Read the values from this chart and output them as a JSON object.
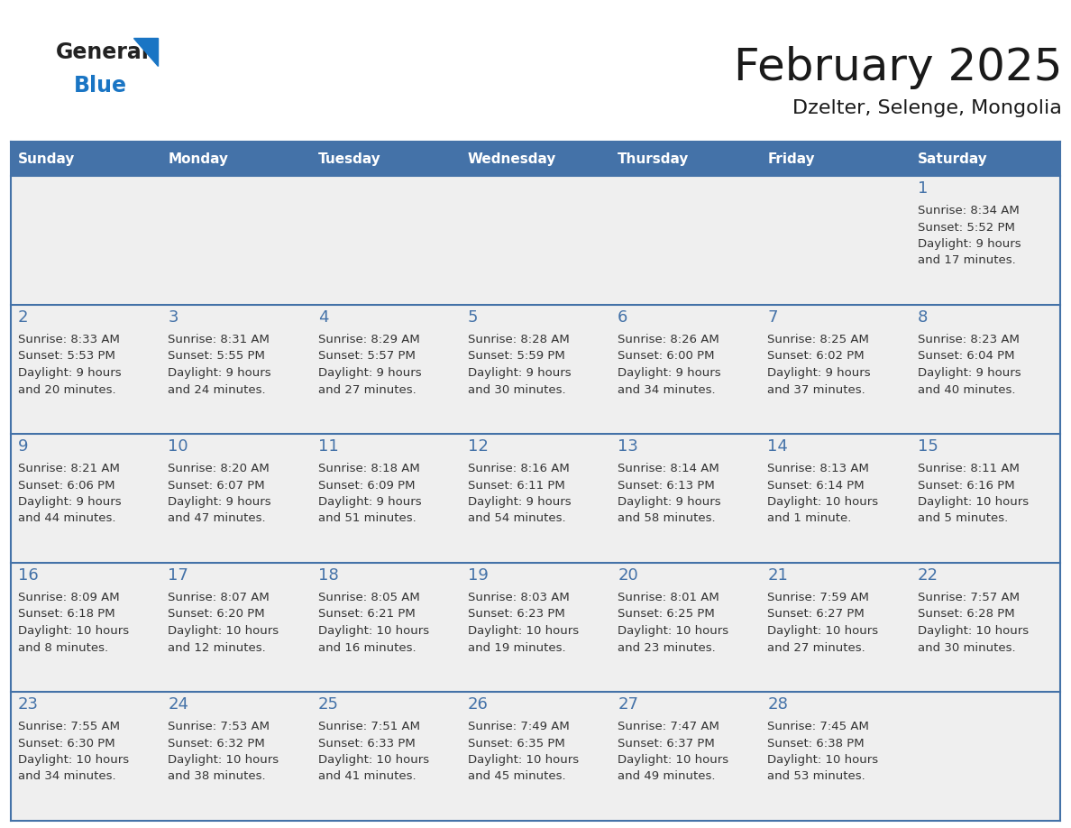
{
  "title": "February 2025",
  "subtitle": "Dzelter, Selenge, Mongolia",
  "days_of_week": [
    "Sunday",
    "Monday",
    "Tuesday",
    "Wednesday",
    "Thursday",
    "Friday",
    "Saturday"
  ],
  "header_bg_color": "#4472A8",
  "header_text_color": "#FFFFFF",
  "cell_bg_color": "#EFEFEF",
  "day_number_color": "#4472A8",
  "text_color": "#333333",
  "line_color": "#4472A8",
  "calendar_data": [
    [
      null,
      null,
      null,
      null,
      null,
      null,
      {
        "day": 1,
        "sunrise": "8:34 AM",
        "sunset": "5:52 PM",
        "daylight": "9 hours",
        "daylight2": "and 17 minutes."
      }
    ],
    [
      {
        "day": 2,
        "sunrise": "8:33 AM",
        "sunset": "5:53 PM",
        "daylight": "9 hours",
        "daylight2": "and 20 minutes."
      },
      {
        "day": 3,
        "sunrise": "8:31 AM",
        "sunset": "5:55 PM",
        "daylight": "9 hours",
        "daylight2": "and 24 minutes."
      },
      {
        "day": 4,
        "sunrise": "8:29 AM",
        "sunset": "5:57 PM",
        "daylight": "9 hours",
        "daylight2": "and 27 minutes."
      },
      {
        "day": 5,
        "sunrise": "8:28 AM",
        "sunset": "5:59 PM",
        "daylight": "9 hours",
        "daylight2": "and 30 minutes."
      },
      {
        "day": 6,
        "sunrise": "8:26 AM",
        "sunset": "6:00 PM",
        "daylight": "9 hours",
        "daylight2": "and 34 minutes."
      },
      {
        "day": 7,
        "sunrise": "8:25 AM",
        "sunset": "6:02 PM",
        "daylight": "9 hours",
        "daylight2": "and 37 minutes."
      },
      {
        "day": 8,
        "sunrise": "8:23 AM",
        "sunset": "6:04 PM",
        "daylight": "9 hours",
        "daylight2": "and 40 minutes."
      }
    ],
    [
      {
        "day": 9,
        "sunrise": "8:21 AM",
        "sunset": "6:06 PM",
        "daylight": "9 hours",
        "daylight2": "and 44 minutes."
      },
      {
        "day": 10,
        "sunrise": "8:20 AM",
        "sunset": "6:07 PM",
        "daylight": "9 hours",
        "daylight2": "and 47 minutes."
      },
      {
        "day": 11,
        "sunrise": "8:18 AM",
        "sunset": "6:09 PM",
        "daylight": "9 hours",
        "daylight2": "and 51 minutes."
      },
      {
        "day": 12,
        "sunrise": "8:16 AM",
        "sunset": "6:11 PM",
        "daylight": "9 hours",
        "daylight2": "and 54 minutes."
      },
      {
        "day": 13,
        "sunrise": "8:14 AM",
        "sunset": "6:13 PM",
        "daylight": "9 hours",
        "daylight2": "and 58 minutes."
      },
      {
        "day": 14,
        "sunrise": "8:13 AM",
        "sunset": "6:14 PM",
        "daylight": "10 hours",
        "daylight2": "and 1 minute."
      },
      {
        "day": 15,
        "sunrise": "8:11 AM",
        "sunset": "6:16 PM",
        "daylight": "10 hours",
        "daylight2": "and 5 minutes."
      }
    ],
    [
      {
        "day": 16,
        "sunrise": "8:09 AM",
        "sunset": "6:18 PM",
        "daylight": "10 hours",
        "daylight2": "and 8 minutes."
      },
      {
        "day": 17,
        "sunrise": "8:07 AM",
        "sunset": "6:20 PM",
        "daylight": "10 hours",
        "daylight2": "and 12 minutes."
      },
      {
        "day": 18,
        "sunrise": "8:05 AM",
        "sunset": "6:21 PM",
        "daylight": "10 hours",
        "daylight2": "and 16 minutes."
      },
      {
        "day": 19,
        "sunrise": "8:03 AM",
        "sunset": "6:23 PM",
        "daylight": "10 hours",
        "daylight2": "and 19 minutes."
      },
      {
        "day": 20,
        "sunrise": "8:01 AM",
        "sunset": "6:25 PM",
        "daylight": "10 hours",
        "daylight2": "and 23 minutes."
      },
      {
        "day": 21,
        "sunrise": "7:59 AM",
        "sunset": "6:27 PM",
        "daylight": "10 hours",
        "daylight2": "and 27 minutes."
      },
      {
        "day": 22,
        "sunrise": "7:57 AM",
        "sunset": "6:28 PM",
        "daylight": "10 hours",
        "daylight2": "and 30 minutes."
      }
    ],
    [
      {
        "day": 23,
        "sunrise": "7:55 AM",
        "sunset": "6:30 PM",
        "daylight": "10 hours",
        "daylight2": "and 34 minutes."
      },
      {
        "day": 24,
        "sunrise": "7:53 AM",
        "sunset": "6:32 PM",
        "daylight": "10 hours",
        "daylight2": "and 38 minutes."
      },
      {
        "day": 25,
        "sunrise": "7:51 AM",
        "sunset": "6:33 PM",
        "daylight": "10 hours",
        "daylight2": "and 41 minutes."
      },
      {
        "day": 26,
        "sunrise": "7:49 AM",
        "sunset": "6:35 PM",
        "daylight": "10 hours",
        "daylight2": "and 45 minutes."
      },
      {
        "day": 27,
        "sunrise": "7:47 AM",
        "sunset": "6:37 PM",
        "daylight": "10 hours",
        "daylight2": "and 49 minutes."
      },
      {
        "day": 28,
        "sunrise": "7:45 AM",
        "sunset": "6:38 PM",
        "daylight": "10 hours",
        "daylight2": "and 53 minutes."
      },
      null
    ]
  ]
}
